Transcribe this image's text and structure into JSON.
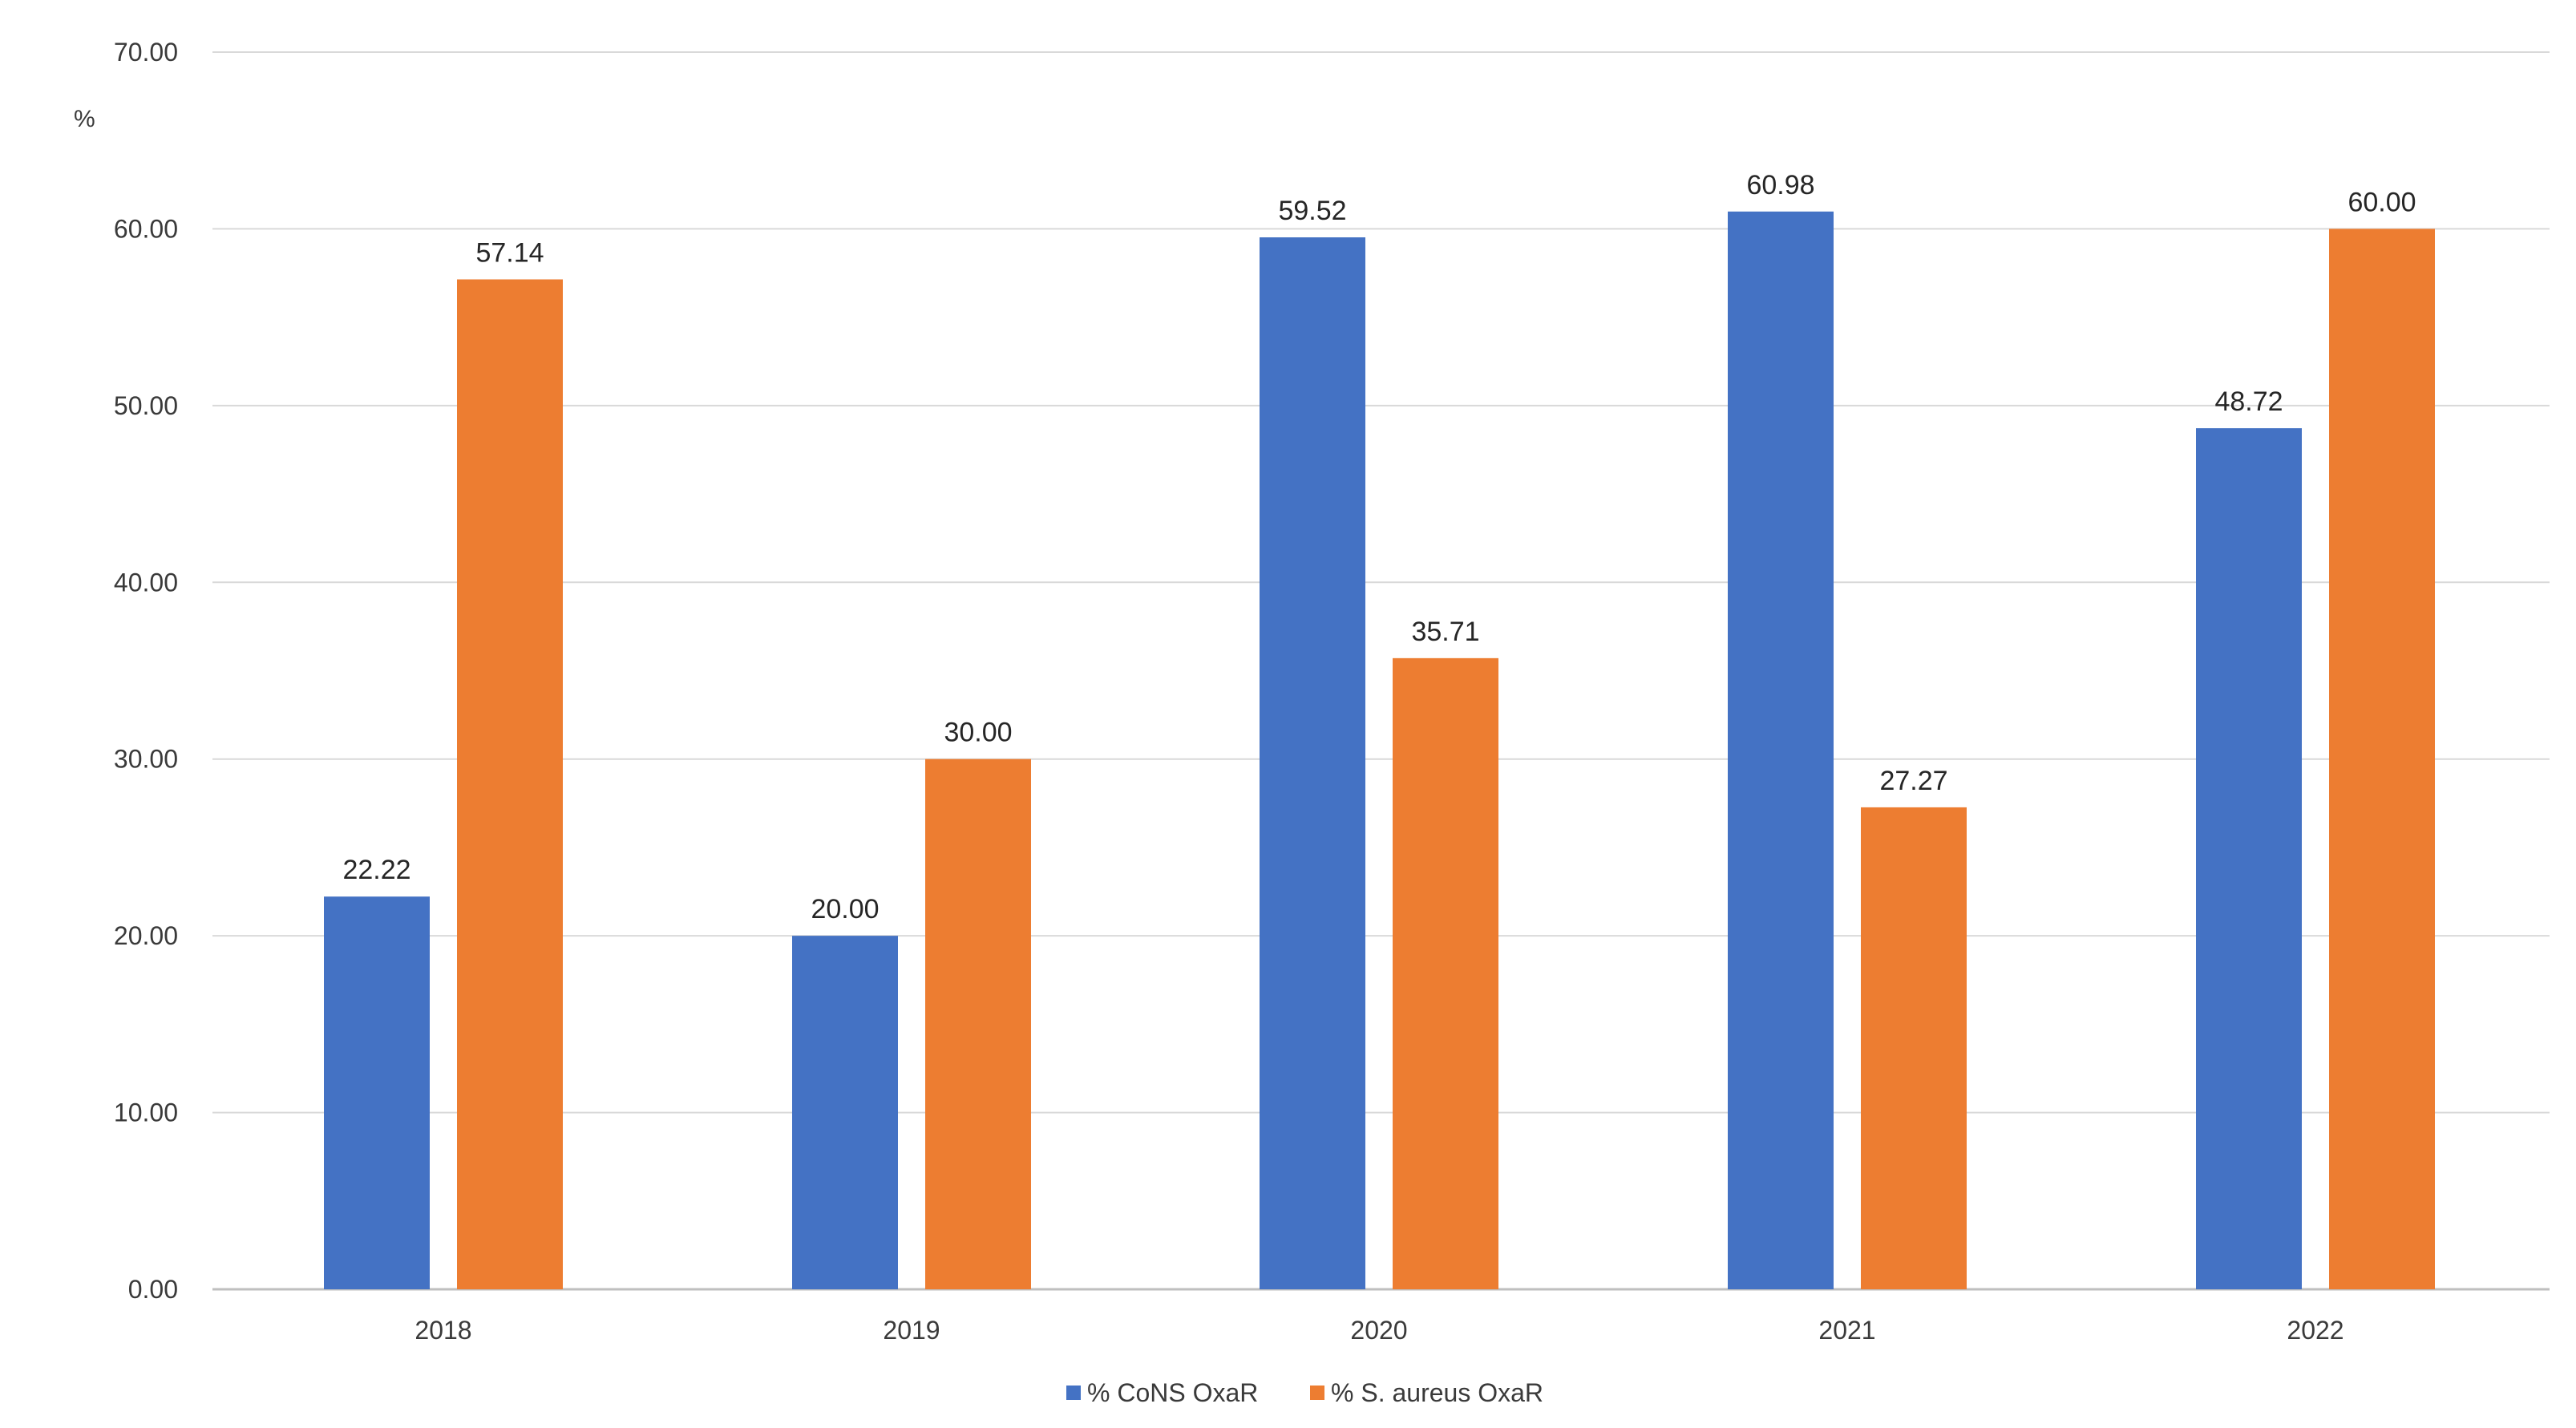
{
  "chart_data": {
    "type": "bar",
    "title": "",
    "xlabel": "",
    "ylabel": "%",
    "ylim": [
      0,
      70
    ],
    "yticks": [
      "0.00",
      "10.00",
      "20.00",
      "30.00",
      "40.00",
      "50.00",
      "60.00",
      "70.00"
    ],
    "categories": [
      "2018",
      "2019",
      "2020",
      "2021",
      "2022"
    ],
    "series": [
      {
        "name": "% CoNS OxaR",
        "color": "#4472C4",
        "values": [
          22.22,
          20.0,
          59.52,
          60.98,
          48.72
        ],
        "labels": [
          "22.22",
          "20.00",
          "59.52",
          "60.98",
          "48.72"
        ]
      },
      {
        "name": "% S. aureus OxaR",
        "color": "#ED7D31",
        "values": [
          57.14,
          30.0,
          35.71,
          27.27,
          60.0
        ],
        "labels": [
          "57.14",
          "30.00",
          "35.71",
          "27.27",
          "60.00"
        ]
      }
    ],
    "grid": true,
    "gridColor": "#d9d9d9",
    "legend": "bottom-center"
  }
}
